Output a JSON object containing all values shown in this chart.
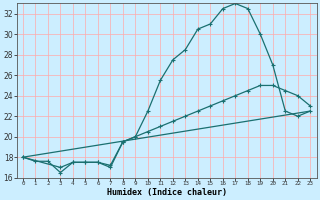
{
  "title": "",
  "xlabel": "Humidex (Indice chaleur)",
  "ylabel": "",
  "bg_color": "#cceeff",
  "grid_color": "#ffaaaa",
  "line_color": "#1a7070",
  "xlim": [
    -0.5,
    23.5
  ],
  "ylim": [
    16,
    33
  ],
  "xticks": [
    0,
    1,
    2,
    3,
    4,
    5,
    6,
    7,
    8,
    9,
    10,
    11,
    12,
    13,
    14,
    15,
    16,
    17,
    18,
    19,
    20,
    21,
    22,
    23
  ],
  "yticks": [
    16,
    18,
    20,
    22,
    24,
    26,
    28,
    30,
    32
  ],
  "line1_x": [
    0,
    1,
    2,
    3,
    4,
    5,
    6,
    7,
    8,
    9,
    10,
    11,
    12,
    13,
    14,
    15,
    16,
    17,
    18,
    19,
    20,
    21,
    22,
    23
  ],
  "line1_y": [
    18,
    17.6,
    17.6,
    16.5,
    17.5,
    17.5,
    17.5,
    17.2,
    19.5,
    20.0,
    22.5,
    25.5,
    27.5,
    28.5,
    30.5,
    31.0,
    32.5,
    33.0,
    32.5,
    30.0,
    27.0,
    22.5,
    22.0,
    22.5
  ],
  "line2_x": [
    0,
    3,
    4,
    5,
    6,
    7,
    8,
    9,
    10,
    11,
    12,
    13,
    14,
    15,
    16,
    17,
    18,
    19,
    20,
    21,
    22,
    23
  ],
  "line2_y": [
    18,
    17.0,
    17.5,
    17.5,
    17.5,
    17.0,
    19.5,
    20.0,
    20.5,
    21.0,
    21.5,
    22.0,
    22.5,
    23.0,
    23.5,
    24.0,
    24.5,
    25.0,
    25.0,
    24.5,
    24.0,
    23.0
  ],
  "line3_x": [
    0,
    23
  ],
  "line3_y": [
    18,
    22.5
  ]
}
